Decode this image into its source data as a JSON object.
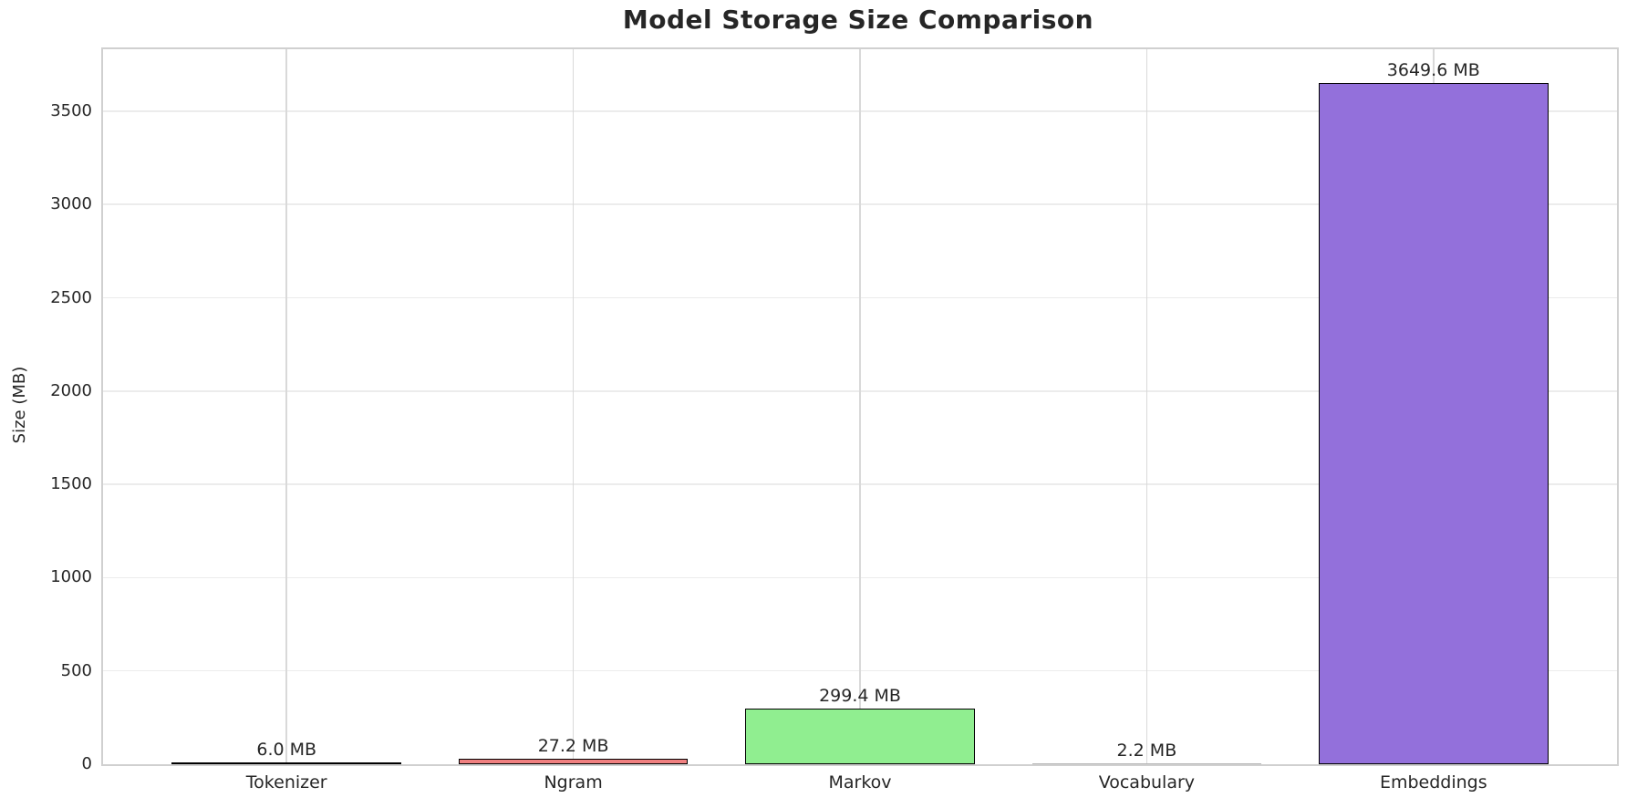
{
  "title": "Model Storage Size Comparison",
  "chart_data": {
    "type": "bar",
    "title": "Model Storage Size Comparison",
    "xlabel": "",
    "ylabel": "Size (MB)",
    "categories": [
      "Tokenizer",
      "Ngram",
      "Markov",
      "Vocabulary",
      "Embeddings"
    ],
    "values": [
      6.0,
      27.2,
      299.4,
      2.2,
      3649.6
    ],
    "bar_labels": [
      "6.0 MB",
      "27.2 MB",
      "299.4 MB",
      "2.2 MB",
      "3649.6 MB"
    ],
    "bar_colors": [
      "#87CEEB",
      "#F08080",
      "#90EE90",
      "#FFD700",
      "#9370DB"
    ],
    "bar_edge_color": "#000000",
    "yticks": [
      0,
      500,
      1000,
      1500,
      2000,
      2500,
      3000,
      3500
    ],
    "ylim": [
      0,
      3832
    ],
    "grid": true,
    "legend": false,
    "background_color": "#ffffff",
    "text_color": "#262626",
    "grid_color_horizontal": "#ececec",
    "grid_color_vertical": "#d9d9d9",
    "spine_color": "#d0d0d0"
  }
}
